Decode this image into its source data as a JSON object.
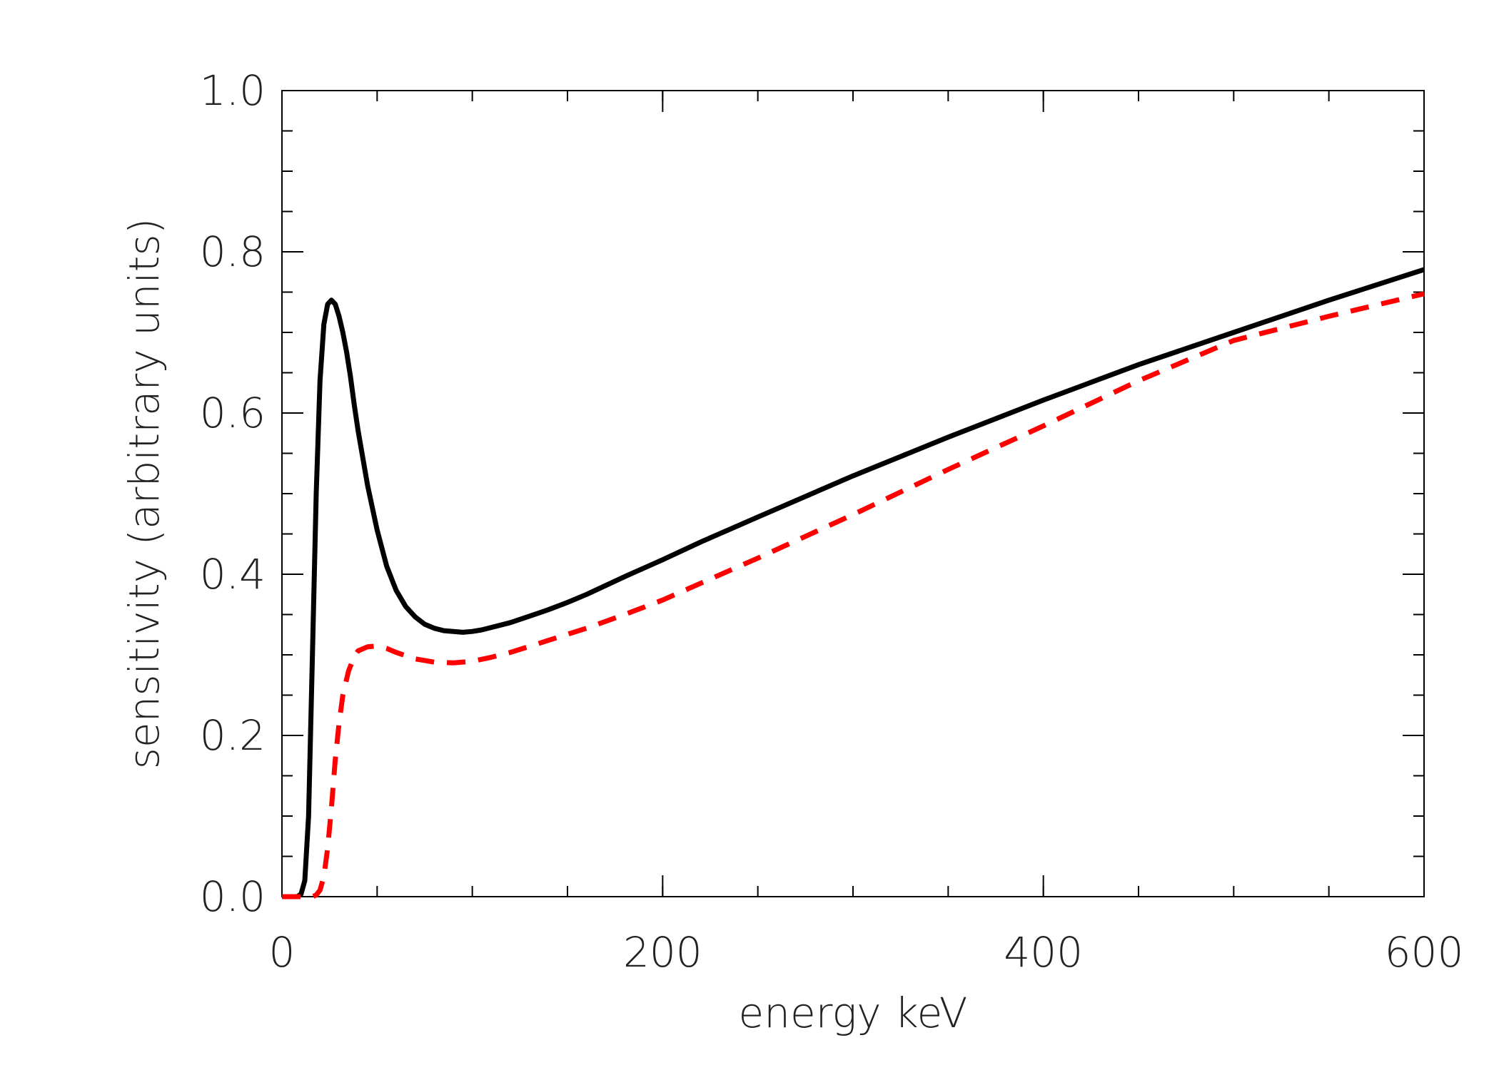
{
  "chart_data": {
    "type": "line",
    "title": "",
    "xlabel": "energy keV",
    "ylabel": "sensitivity (arbitrary units)",
    "xlim": [
      0,
      600
    ],
    "ylim": [
      0,
      1.0
    ],
    "x_ticks": [
      {
        "value": 0,
        "label": "0"
      },
      {
        "value": 200,
        "label": "200"
      },
      {
        "value": 400,
        "label": "400"
      },
      {
        "value": 600,
        "label": "600"
      }
    ],
    "y_ticks": [
      {
        "value": 0.0,
        "label": "0.0"
      },
      {
        "value": 0.2,
        "label": "0.2"
      },
      {
        "value": 0.4,
        "label": "0.4"
      },
      {
        "value": 0.6,
        "label": "0.6"
      },
      {
        "value": 0.8,
        "label": "0.8"
      },
      {
        "value": 1.0,
        "label": "1.0"
      }
    ],
    "x_minor_step": 50,
    "y_minor_step": 0.05,
    "grid": false,
    "series": [
      {
        "name": "solid",
        "color": "#000000",
        "dash": "solid",
        "x": [
          0,
          8,
          10,
          12,
          14,
          16,
          18,
          20,
          22,
          24,
          26,
          28,
          30,
          32,
          34,
          36,
          38,
          40,
          45,
          50,
          55,
          60,
          65,
          70,
          75,
          80,
          85,
          90,
          95,
          100,
          105,
          110,
          120,
          130,
          140,
          150,
          160,
          180,
          200,
          220,
          250,
          300,
          350,
          400,
          450,
          500,
          550,
          600
        ],
        "y": [
          0,
          0,
          0.003,
          0.02,
          0.1,
          0.3,
          0.5,
          0.64,
          0.71,
          0.735,
          0.74,
          0.735,
          0.72,
          0.7,
          0.675,
          0.645,
          0.61,
          0.578,
          0.51,
          0.455,
          0.41,
          0.38,
          0.36,
          0.347,
          0.338,
          0.333,
          0.33,
          0.329,
          0.328,
          0.329,
          0.331,
          0.334,
          0.34,
          0.348,
          0.356,
          0.365,
          0.375,
          0.397,
          0.418,
          0.44,
          0.471,
          0.522,
          0.57,
          0.616,
          0.66,
          0.7,
          0.74,
          0.778
        ]
      },
      {
        "name": "dashed",
        "color": "#ff0000",
        "dash": "dashed",
        "x": [
          0,
          16,
          18,
          20,
          22,
          24,
          26,
          28,
          30,
          32,
          35,
          38,
          40,
          45,
          50,
          55,
          60,
          70,
          80,
          90,
          100,
          110,
          120,
          140,
          160,
          180,
          200,
          250,
          300,
          350,
          400,
          450,
          500,
          550,
          600
        ],
        "y": [
          0,
          0,
          0.002,
          0.008,
          0.025,
          0.06,
          0.11,
          0.17,
          0.215,
          0.25,
          0.28,
          0.298,
          0.305,
          0.31,
          0.311,
          0.308,
          0.303,
          0.295,
          0.291,
          0.29,
          0.292,
          0.297,
          0.303,
          0.318,
          0.333,
          0.35,
          0.368,
          0.42,
          0.474,
          0.53,
          0.584,
          0.64,
          0.69,
          0.72,
          0.748
        ]
      }
    ]
  }
}
